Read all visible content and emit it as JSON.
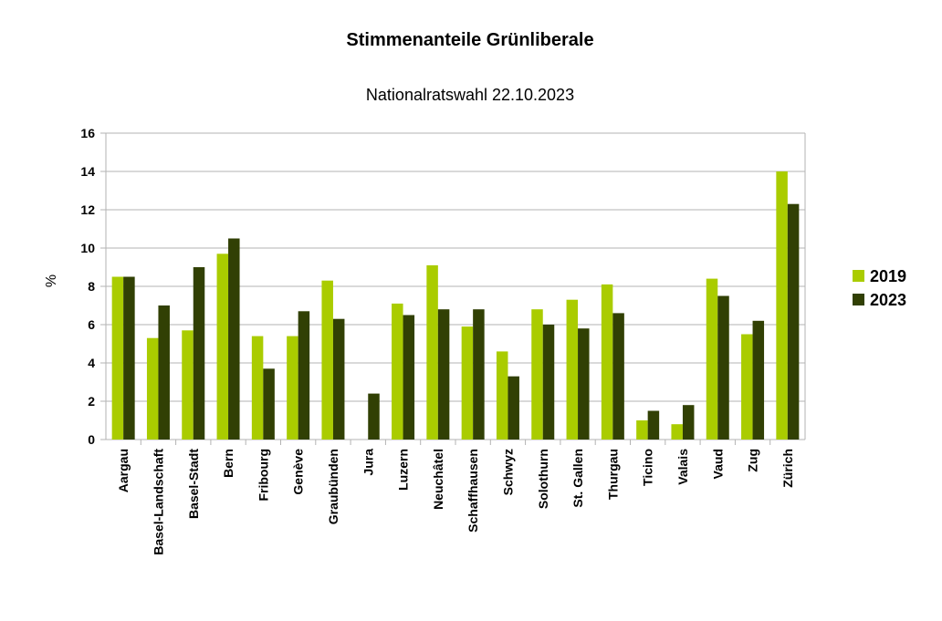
{
  "chart_data": {
    "type": "bar",
    "title": "Stimmenanteile Grünliberale",
    "subtitle": "Nationalratswahl 22.10.2023",
    "xlabel": "",
    "ylabel": "%",
    "ylim": [
      0,
      16
    ],
    "yticks": [
      0,
      2,
      4,
      6,
      8,
      10,
      12,
      14,
      16
    ],
    "grid": true,
    "legend_position": "right",
    "categories": [
      "Aargau",
      "Basel-Landschaft",
      "Basel-Stadt",
      "Bern",
      "Fribourg",
      "Genève",
      "Graubünden",
      "Jura",
      "Luzern",
      "Neuchâtel",
      "Schaffhausen",
      "Schwyz",
      "Solothurn",
      "St. Gallen",
      "Thurgau",
      "Ticino",
      "Valais",
      "Vaud",
      "Zug",
      "Zürich"
    ],
    "series": [
      {
        "name": "2019",
        "color": "#aacc00",
        "values": [
          8.5,
          5.3,
          5.7,
          9.7,
          5.4,
          5.4,
          8.3,
          0.0,
          7.1,
          9.1,
          5.9,
          4.6,
          6.8,
          7.3,
          8.1,
          1.0,
          0.8,
          8.4,
          5.5,
          14.0
        ]
      },
      {
        "name": "2023",
        "color": "#314004",
        "values": [
          8.5,
          7.0,
          9.0,
          10.5,
          3.7,
          6.7,
          6.3,
          2.4,
          6.5,
          6.8,
          6.8,
          3.3,
          6.0,
          5.8,
          6.6,
          1.5,
          1.8,
          7.5,
          6.2,
          12.3
        ]
      }
    ]
  }
}
